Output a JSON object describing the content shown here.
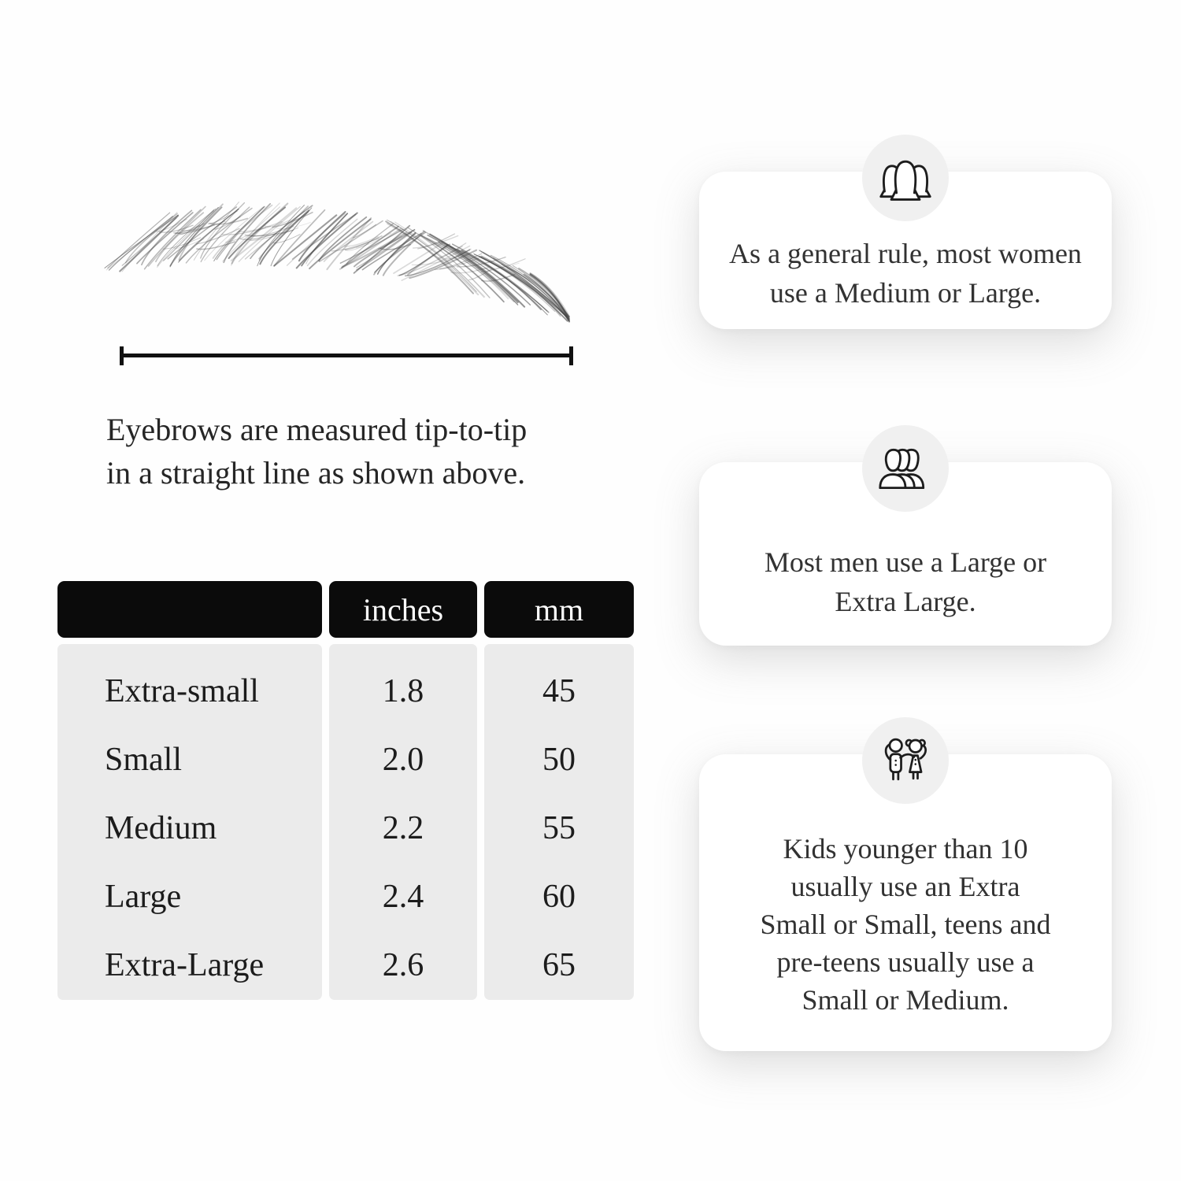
{
  "diagram": {
    "illustration": "eyebrow-sketch",
    "caption_lines": [
      "Eyebrows are measured tip-to-tip",
      "in a straight line as shown above."
    ]
  },
  "size_table": {
    "headers": [
      "",
      "inches",
      "mm"
    ],
    "rows": [
      {
        "label": "Extra-small",
        "inches": "1.8",
        "mm": "45"
      },
      {
        "label": "Small",
        "inches": "2.0",
        "mm": "50"
      },
      {
        "label": "Medium",
        "inches": "2.2",
        "mm": "55"
      },
      {
        "label": "Large",
        "inches": "2.4",
        "mm": "60"
      },
      {
        "label": "Extra-Large",
        "inches": "2.6",
        "mm": "65"
      }
    ]
  },
  "cards": [
    {
      "icon": "women-group-icon",
      "lines": [
        "As a general rule, most women",
        "use a Medium or Large."
      ]
    },
    {
      "icon": "men-group-icon",
      "lines": [
        "Most men use a Large or",
        "Extra Large."
      ]
    },
    {
      "icon": "kids-icon",
      "lines": [
        "Kids younger than 10",
        "usually use an Extra",
        "Small or Small, teens and",
        "pre-teens usually use a",
        "Small or Medium."
      ]
    }
  ],
  "colors": {
    "table_header_bg": "#0b0b0b",
    "table_body_bg": "#ebebeb",
    "card_bg": "#ffffff",
    "badge_bg": "#f0f0f0",
    "icon_stroke": "#1d1d1d",
    "measure_line": "#111111",
    "text": "#222222"
  }
}
